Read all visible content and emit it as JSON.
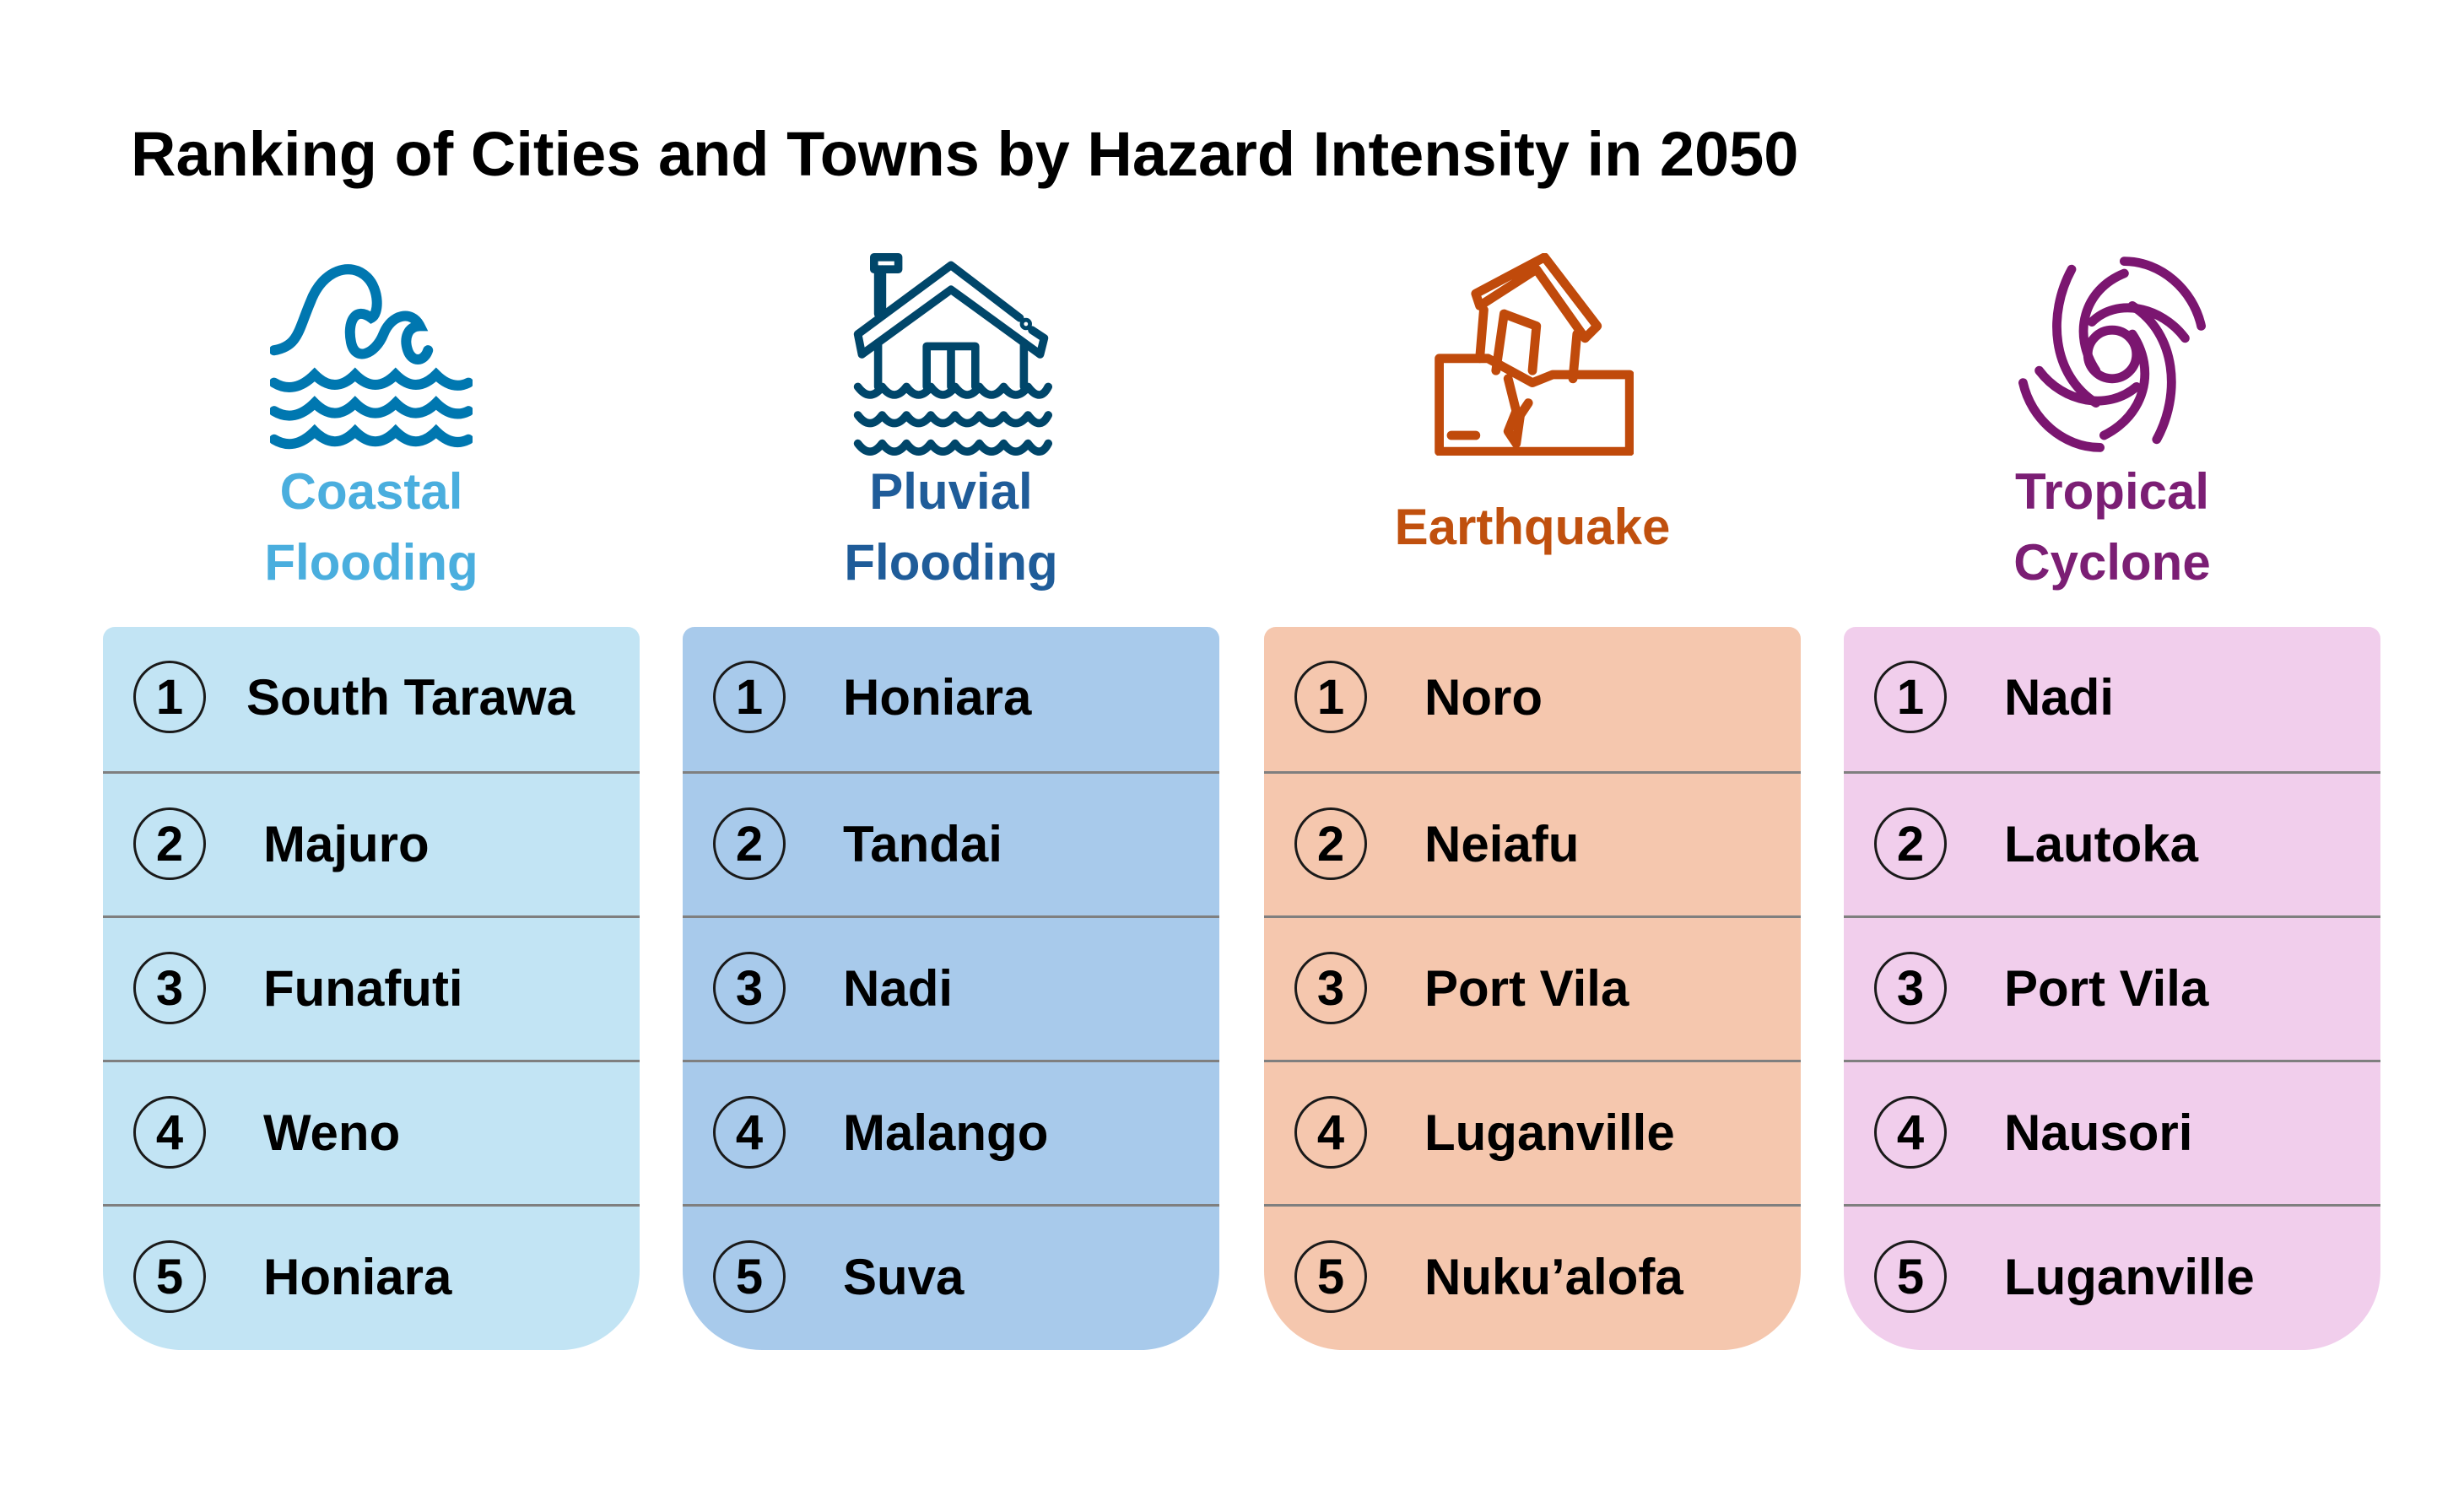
{
  "title": "Ranking of Cities and Towns by Hazard Intensity in 2050",
  "columns": [
    {
      "name": "Coastal Flooding",
      "line1": "Coastal",
      "line2": "Flooding",
      "icon": "wave-icon",
      "label_color": "#4AAEDE",
      "icon_color": "#0077B0",
      "bg": "#C2E4F4",
      "ranks": [
        {
          "rank": "1",
          "city": "South Tarawa"
        },
        {
          "rank": "2",
          "city": "Majuro"
        },
        {
          "rank": "3",
          "city": "Funafuti"
        },
        {
          "rank": "4",
          "city": "Weno"
        },
        {
          "rank": "5",
          "city": "Honiara"
        }
      ]
    },
    {
      "name": "Pluvial Flooding",
      "line1": "Pluvial",
      "line2": "Flooding",
      "icon": "flooded-house-icon",
      "label_color": "#1F5C99",
      "icon_color": "#00466A",
      "bg": "#A8CAEB",
      "ranks": [
        {
          "rank": "1",
          "city": "Honiara"
        },
        {
          "rank": "2",
          "city": "Tandai"
        },
        {
          "rank": "3",
          "city": "Nadi"
        },
        {
          "rank": "4",
          "city": "Malango"
        },
        {
          "rank": "5",
          "city": "Suva"
        }
      ]
    },
    {
      "name": "Earthquake",
      "line1": "Earthquake",
      "line2": "",
      "icon": "earthquake-house-icon",
      "label_color": "#C0500E",
      "icon_color": "#C04A0B",
      "bg": "#F5C7AE",
      "ranks": [
        {
          "rank": "1",
          "city": "Noro"
        },
        {
          "rank": "2",
          "city": "Neiafu"
        },
        {
          "rank": "3",
          "city": "Port Vila"
        },
        {
          "rank": "4",
          "city": "Luganville"
        },
        {
          "rank": "5",
          "city": "Nuku’alofa"
        }
      ]
    },
    {
      "name": "Tropical Cyclone",
      "line1": "Tropical",
      "line2": "Cyclone",
      "icon": "cyclone-icon",
      "label_color": "#7B1E74",
      "icon_color": "#7B1670",
      "bg": "#F1CEEC",
      "ranks": [
        {
          "rank": "1",
          "city": "Nadi"
        },
        {
          "rank": "2",
          "city": "Lautoka"
        },
        {
          "rank": "3",
          "city": "Port Vila"
        },
        {
          "rank": "4",
          "city": "Nausori"
        },
        {
          "rank": "5",
          "city": "Luganville"
        }
      ]
    }
  ]
}
